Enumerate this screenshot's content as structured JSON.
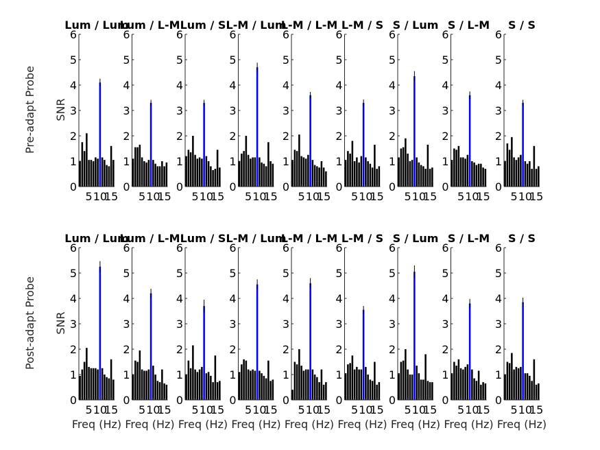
{
  "figure": {
    "row_labels": [
      "Pre-adapt Probe",
      "Post-adapt Probe"
    ],
    "ylabel": "SNR",
    "xlabel": "Freq (Hz)",
    "ytick_labels": [
      "0",
      "1",
      "2",
      "3",
      "4",
      "5",
      "6"
    ],
    "xtick_labels": [
      "5",
      "10",
      "15"
    ]
  },
  "chart_data": [
    {
      "type": "bar",
      "row": "Pre-adapt Probe",
      "title": "Lum / Lum",
      "x": [
        1,
        2,
        3,
        4,
        5,
        6,
        7,
        8,
        9,
        10,
        11,
        12,
        13,
        14,
        15,
        16
      ],
      "values": [
        1.0,
        1.75,
        1.4,
        2.1,
        1.05,
        1.05,
        1.0,
        1.15,
        1.1,
        4.1,
        1.15,
        1.05,
        0.85,
        0.8,
        1.6,
        1.05
      ],
      "highlight_index": 9,
      "error": 0.15,
      "ylim": [
        0,
        6
      ],
      "xticks": [
        5,
        10,
        15
      ]
    },
    {
      "type": "bar",
      "row": "Pre-adapt Probe",
      "title": "Lum / L-M",
      "x": [
        1,
        2,
        3,
        4,
        5,
        6,
        7,
        8,
        9,
        10,
        11,
        12,
        13,
        14,
        15,
        16
      ],
      "values": [
        1.1,
        1.55,
        1.55,
        1.65,
        1.15,
        1.0,
        0.95,
        1.05,
        3.3,
        1.05,
        0.9,
        0.8,
        0.8,
        1.0,
        0.8,
        0.95
      ],
      "highlight_index": 8,
      "error": 0.12,
      "ylim": [
        0,
        6
      ],
      "xticks": [
        5,
        10,
        15
      ]
    },
    {
      "type": "bar",
      "row": "Pre-adapt Probe",
      "title": "Lum / S",
      "x": [
        1,
        2,
        3,
        4,
        5,
        6,
        7,
        8,
        9,
        10,
        11,
        12,
        13,
        14,
        15,
        16
      ],
      "values": [
        1.2,
        1.45,
        1.35,
        2.0,
        1.25,
        1.1,
        1.15,
        1.1,
        3.3,
        1.2,
        1.0,
        0.8,
        0.65,
        0.7,
        1.45,
        0.75
      ],
      "highlight_index": 8,
      "error": 0.12,
      "ylim": [
        0,
        6
      ],
      "xticks": [
        5,
        10,
        15
      ]
    },
    {
      "type": "bar",
      "row": "Pre-adapt Probe",
      "title": "L-M / Lum",
      "x": [
        1,
        2,
        3,
        4,
        5,
        6,
        7,
        8,
        9,
        10,
        11,
        12,
        13,
        14,
        15,
        16
      ],
      "values": [
        1.0,
        1.3,
        1.4,
        2.0,
        1.25,
        1.1,
        1.15,
        1.15,
        4.7,
        1.15,
        0.95,
        0.9,
        0.8,
        1.75,
        1.0,
        0.9
      ],
      "highlight_index": 8,
      "error": 0.18,
      "ylim": [
        0,
        6
      ],
      "xticks": [
        5,
        10,
        15
      ]
    },
    {
      "type": "bar",
      "row": "Pre-adapt Probe",
      "title": "L-M / L-M",
      "x": [
        1,
        2,
        3,
        4,
        5,
        6,
        7,
        8,
        9,
        10,
        11,
        12,
        13,
        14,
        15,
        16
      ],
      "values": [
        1.05,
        1.45,
        1.4,
        2.05,
        1.2,
        1.15,
        1.1,
        1.25,
        3.6,
        1.05,
        0.85,
        0.8,
        0.75,
        1.0,
        0.75,
        0.6
      ],
      "highlight_index": 8,
      "error": 0.13,
      "ylim": [
        0,
        6
      ],
      "xticks": [
        5,
        10,
        15
      ]
    },
    {
      "type": "bar",
      "row": "Pre-adapt Probe",
      "title": "L-M / S",
      "x": [
        1,
        2,
        3,
        4,
        5,
        6,
        7,
        8,
        9,
        10,
        11,
        12,
        13,
        14,
        15,
        16
      ],
      "values": [
        1.05,
        1.4,
        1.3,
        1.8,
        1.0,
        1.15,
        0.95,
        1.2,
        3.3,
        1.15,
        1.0,
        0.9,
        0.75,
        1.65,
        0.7,
        0.8
      ],
      "highlight_index": 8,
      "error": 0.13,
      "ylim": [
        0,
        6
      ],
      "xticks": [
        5,
        10,
        15
      ]
    },
    {
      "type": "bar",
      "row": "Pre-adapt Probe",
      "title": "S / Lum",
      "x": [
        1,
        2,
        3,
        4,
        5,
        6,
        7,
        8,
        9,
        10,
        11,
        12,
        13,
        14,
        15,
        16
      ],
      "values": [
        1.15,
        1.5,
        1.55,
        1.9,
        1.3,
        1.0,
        1.05,
        4.35,
        1.15,
        0.95,
        0.85,
        0.8,
        0.7,
        1.65,
        0.7,
        0.75
      ],
      "highlight_index": 7,
      "error": 0.2,
      "ylim": [
        0,
        6
      ],
      "xticks": [
        5,
        10,
        15
      ]
    },
    {
      "type": "bar",
      "row": "Pre-adapt Probe",
      "title": "S / L-M",
      "x": [
        1,
        2,
        3,
        4,
        5,
        6,
        7,
        8,
        9,
        10,
        11,
        12,
        13,
        14,
        15,
        16
      ],
      "values": [
        1.05,
        1.5,
        1.45,
        1.6,
        1.15,
        1.15,
        1.1,
        1.25,
        3.6,
        1.0,
        0.95,
        0.85,
        0.9,
        0.9,
        0.75,
        0.7
      ],
      "highlight_index": 8,
      "error": 0.15,
      "ylim": [
        0,
        6
      ],
      "xticks": [
        5,
        10,
        15
      ]
    },
    {
      "type": "bar",
      "row": "Pre-adapt Probe",
      "title": "S / S",
      "x": [
        1,
        2,
        3,
        4,
        5,
        6,
        7,
        8,
        9,
        10,
        11,
        12,
        13,
        14,
        15,
        16
      ],
      "values": [
        1.0,
        1.7,
        1.45,
        1.95,
        1.15,
        1.05,
        1.15,
        1.25,
        3.3,
        1.0,
        0.9,
        1.0,
        0.7,
        1.6,
        0.7,
        0.8
      ],
      "highlight_index": 8,
      "error": 0.12,
      "ylim": [
        0,
        6
      ],
      "xticks": [
        5,
        10,
        15
      ]
    },
    {
      "type": "bar",
      "row": "Post-adapt Probe",
      "title": "Lum / Lum",
      "x": [
        1,
        2,
        3,
        4,
        5,
        6,
        7,
        8,
        9,
        10,
        11,
        12,
        13,
        14,
        15,
        16
      ],
      "values": [
        0.95,
        1.2,
        1.5,
        2.05,
        1.3,
        1.25,
        1.25,
        1.25,
        1.2,
        5.25,
        1.25,
        1.0,
        0.9,
        0.85,
        1.6,
        0.8
      ],
      "highlight_index": 9,
      "error": 0.22,
      "ylim": [
        0,
        6
      ],
      "xticks": [
        5,
        10,
        15
      ]
    },
    {
      "type": "bar",
      "row": "Post-adapt Probe",
      "title": "Lum / L-M",
      "x": [
        1,
        2,
        3,
        4,
        5,
        6,
        7,
        8,
        9,
        10,
        11,
        12,
        13,
        14,
        15,
        16
      ],
      "values": [
        1.0,
        1.55,
        1.5,
        1.95,
        1.2,
        1.15,
        1.15,
        1.2,
        4.2,
        1.35,
        1.0,
        0.75,
        0.7,
        1.2,
        0.65,
        0.6
      ],
      "highlight_index": 8,
      "error": 0.18,
      "ylim": [
        0,
        6
      ],
      "xticks": [
        5,
        10,
        15
      ]
    },
    {
      "type": "bar",
      "row": "Post-adapt Probe",
      "title": "Lum / S",
      "x": [
        1,
        2,
        3,
        4,
        5,
        6,
        7,
        8,
        9,
        10,
        11,
        12,
        13,
        14,
        15,
        16
      ],
      "values": [
        1.0,
        1.55,
        1.25,
        2.15,
        1.2,
        1.1,
        1.2,
        1.3,
        3.7,
        1.05,
        1.1,
        0.95,
        0.7,
        1.75,
        0.7,
        0.75
      ],
      "highlight_index": 8,
      "error": 0.25,
      "ylim": [
        0,
        6
      ],
      "xticks": [
        5,
        10,
        15
      ]
    },
    {
      "type": "bar",
      "row": "Post-adapt Probe",
      "title": "L-M / Lum",
      "x": [
        1,
        2,
        3,
        4,
        5,
        6,
        7,
        8,
        9,
        10,
        11,
        12,
        13,
        14,
        15,
        16
      ],
      "values": [
        1.1,
        1.4,
        1.6,
        1.55,
        1.2,
        1.15,
        1.2,
        1.15,
        4.55,
        1.15,
        1.05,
        0.95,
        0.85,
        1.55,
        0.75,
        0.8
      ],
      "highlight_index": 8,
      "error": 0.2,
      "ylim": [
        0,
        6
      ],
      "xticks": [
        5,
        10,
        15
      ]
    },
    {
      "type": "bar",
      "row": "Post-adapt Probe",
      "title": "L-M / L-M",
      "x": [
        1,
        2,
        3,
        4,
        5,
        6,
        7,
        8,
        9,
        10,
        11,
        12,
        13,
        14,
        15,
        16
      ],
      "values": [
        0.4,
        1.5,
        1.4,
        2.0,
        1.35,
        1.15,
        1.2,
        1.2,
        4.6,
        1.2,
        1.0,
        0.9,
        0.7,
        1.2,
        0.6,
        0.7
      ],
      "highlight_index": 8,
      "error": 0.2,
      "ylim": [
        0,
        6
      ],
      "xticks": [
        5,
        10,
        15
      ]
    },
    {
      "type": "bar",
      "row": "Post-adapt Probe",
      "title": "L-M / S",
      "x": [
        1,
        2,
        3,
        4,
        5,
        6,
        7,
        8,
        9,
        10,
        11,
        12,
        13,
        14,
        15,
        16
      ],
      "values": [
        1.05,
        1.4,
        1.45,
        1.75,
        1.2,
        1.3,
        1.2,
        1.2,
        3.55,
        1.3,
        1.0,
        0.8,
        0.75,
        1.5,
        0.6,
        0.7
      ],
      "highlight_index": 8,
      "error": 0.15,
      "ylim": [
        0,
        6
      ],
      "xticks": [
        5,
        10,
        15
      ]
    },
    {
      "type": "bar",
      "row": "Post-adapt Probe",
      "title": "S / Lum",
      "x": [
        1,
        2,
        3,
        4,
        5,
        6,
        7,
        8,
        9,
        10,
        11,
        12,
        13,
        14,
        15,
        16
      ],
      "values": [
        1.05,
        1.5,
        1.55,
        2.0,
        1.2,
        1.0,
        1.0,
        5.05,
        1.35,
        1.05,
        0.8,
        0.8,
        1.8,
        0.75,
        0.7,
        0.7
      ],
      "highlight_index": 7,
      "error": 0.25,
      "ylim": [
        0,
        6
      ],
      "xticks": [
        5,
        10,
        15
      ]
    },
    {
      "type": "bar",
      "row": "Post-adapt Probe",
      "title": "S / L-M",
      "x": [
        1,
        2,
        3,
        4,
        5,
        6,
        7,
        8,
        9,
        10,
        11,
        12,
        13,
        14,
        15,
        16
      ],
      "values": [
        1.05,
        1.5,
        1.35,
        1.6,
        1.25,
        1.2,
        1.3,
        1.4,
        3.8,
        1.2,
        0.85,
        0.75,
        1.15,
        0.6,
        0.7,
        0.65
      ],
      "highlight_index": 8,
      "error": 0.18,
      "ylim": [
        0,
        6
      ],
      "xticks": [
        5,
        10,
        15
      ]
    },
    {
      "type": "bar",
      "row": "Post-adapt Probe",
      "title": "S / S",
      "x": [
        1,
        2,
        3,
        4,
        5,
        6,
        7,
        8,
        9,
        10,
        11,
        12,
        13,
        14,
        15,
        16
      ],
      "values": [
        1.0,
        1.5,
        1.45,
        1.85,
        1.2,
        1.3,
        1.25,
        1.3,
        3.85,
        1.05,
        1.05,
        0.95,
        0.75,
        1.6,
        0.6,
        0.65
      ],
      "highlight_index": 8,
      "error": 0.18,
      "ylim": [
        0,
        6
      ],
      "xticks": [
        5,
        10,
        15
      ]
    }
  ]
}
